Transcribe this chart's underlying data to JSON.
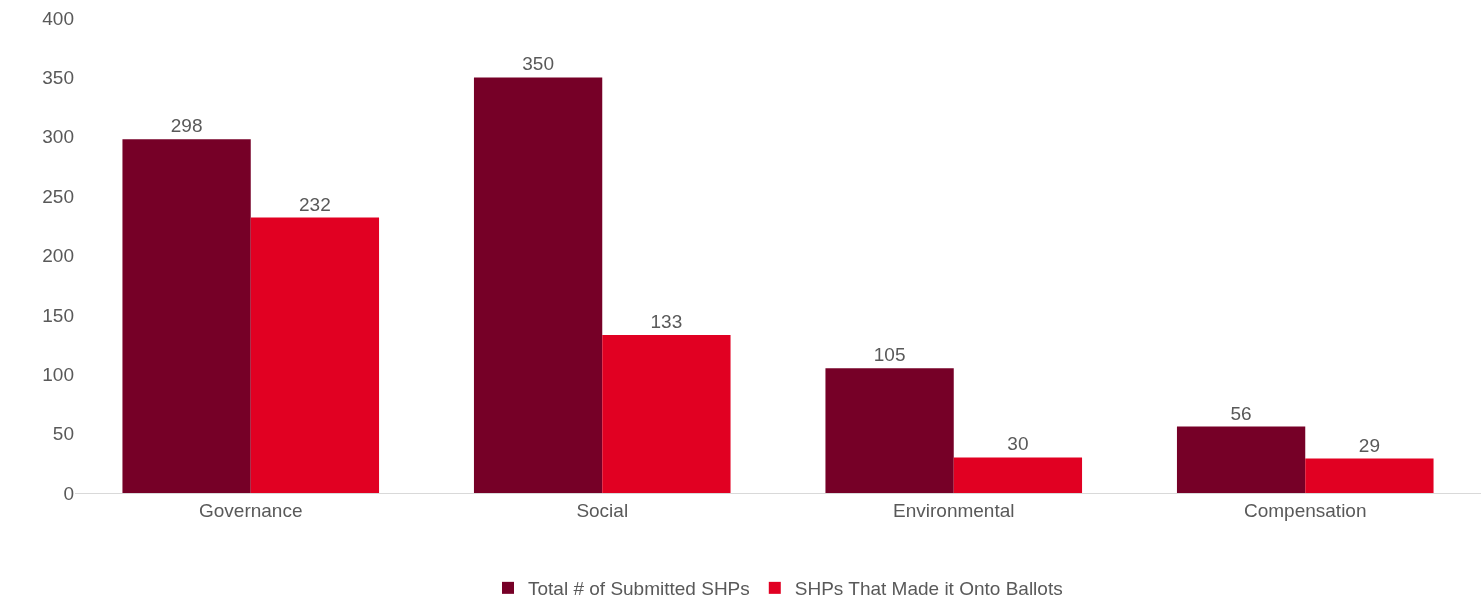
{
  "chart_data": {
    "type": "bar",
    "categories": [
      "Governance",
      "Social",
      "Environmental",
      "Compensation"
    ],
    "series": [
      {
        "name": "Total # of Submitted SHPs",
        "color": "#760027",
        "values": [
          298,
          350,
          105,
          56
        ]
      },
      {
        "name": "SHPs That Made it Onto Ballots",
        "color": "#e10022",
        "values": [
          232,
          133,
          30,
          29
        ]
      }
    ],
    "ylim": [
      0,
      400
    ],
    "yticks": [
      0,
      50,
      100,
      150,
      200,
      250,
      300,
      350,
      400
    ],
    "grid": false,
    "legend": "bottom",
    "data_labels": true
  }
}
